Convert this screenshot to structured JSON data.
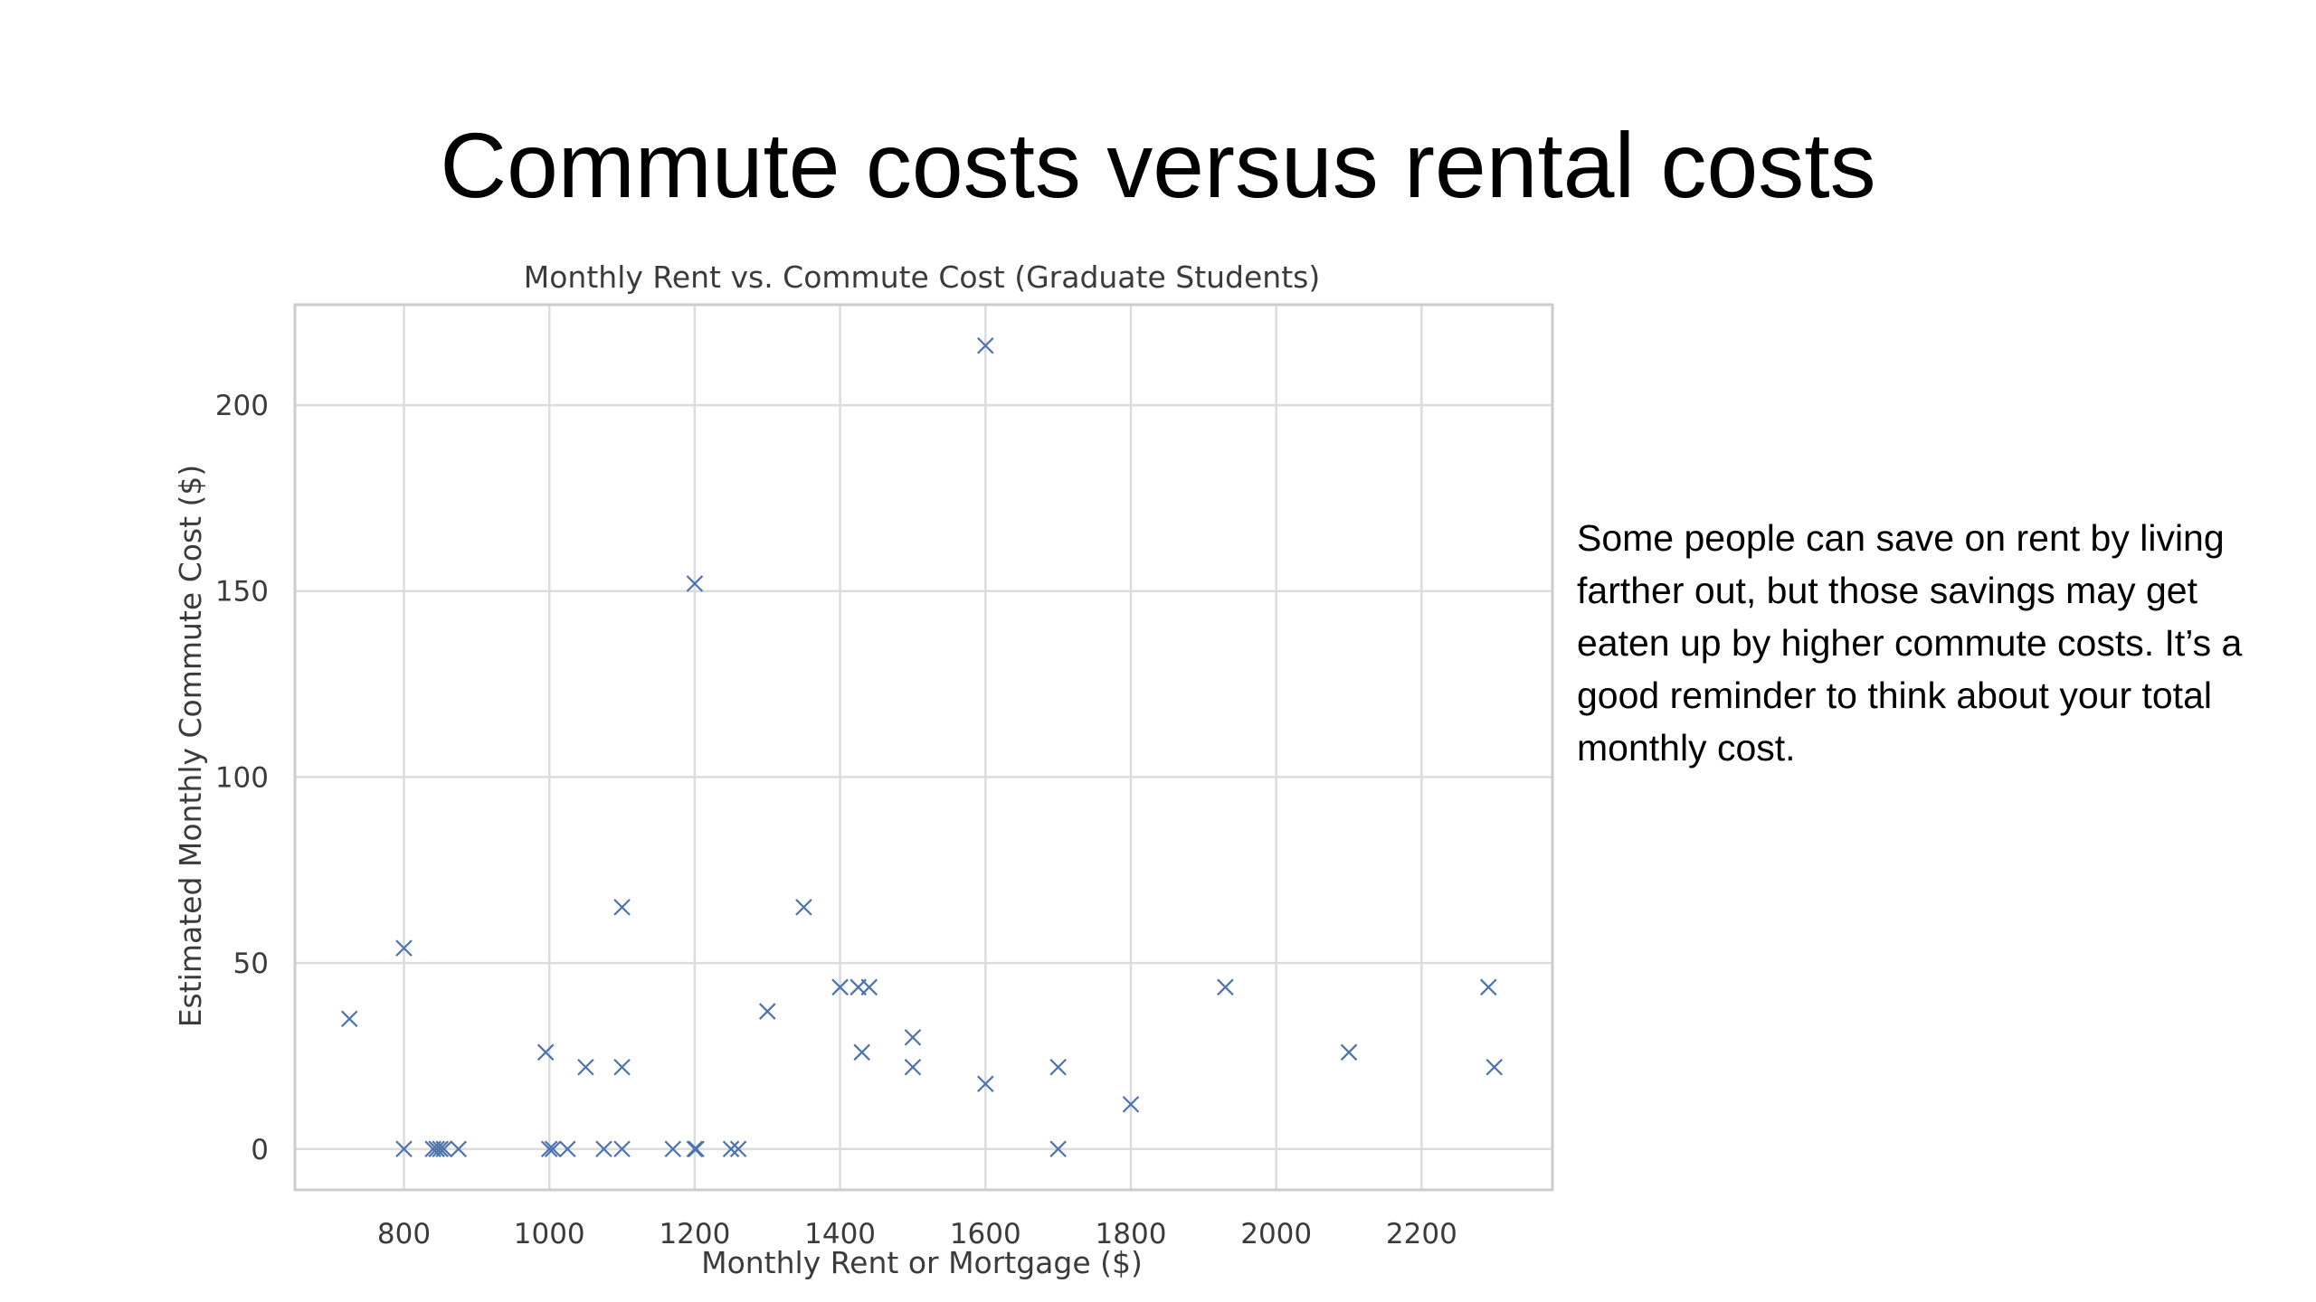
{
  "slide": {
    "title": "Commute costs versus rental costs",
    "note": "Some people can save on rent by living farther out, but those savings may get eaten up by higher commute costs. It’s a good reminder to think about your total monthly cost."
  },
  "chart_data": {
    "type": "scatter",
    "title": "Monthly Rent vs. Commute Cost (Graduate Students)",
    "xlabel": "Monthly Rent or Mortgage ($)",
    "ylabel": "Estimated Monthly Commute Cost ($)",
    "xlim": [
      650,
      2380
    ],
    "ylim": [
      -11,
      227
    ],
    "xticks": [
      800,
      1000,
      1200,
      1400,
      1600,
      1800,
      2000,
      2200
    ],
    "yticks": [
      0,
      50,
      100,
      150,
      200
    ],
    "grid": true,
    "marker": "x",
    "marker_color": "#4c72b0",
    "points": [
      {
        "x": 725,
        "y": 35
      },
      {
        "x": 800,
        "y": 54
      },
      {
        "x": 800,
        "y": 0
      },
      {
        "x": 840,
        "y": 0
      },
      {
        "x": 845,
        "y": 0
      },
      {
        "x": 850,
        "y": 0
      },
      {
        "x": 855,
        "y": 0
      },
      {
        "x": 875,
        "y": 0
      },
      {
        "x": 995,
        "y": 26
      },
      {
        "x": 1000,
        "y": 0
      },
      {
        "x": 1005,
        "y": 0
      },
      {
        "x": 1025,
        "y": 0
      },
      {
        "x": 1050,
        "y": 22
      },
      {
        "x": 1075,
        "y": 0
      },
      {
        "x": 1100,
        "y": 65
      },
      {
        "x": 1100,
        "y": 22
      },
      {
        "x": 1100,
        "y": 0
      },
      {
        "x": 1170,
        "y": 0
      },
      {
        "x": 1200,
        "y": 152
      },
      {
        "x": 1200,
        "y": 0
      },
      {
        "x": 1202,
        "y": 0
      },
      {
        "x": 1250,
        "y": 0
      },
      {
        "x": 1260,
        "y": 0
      },
      {
        "x": 1300,
        "y": 37
      },
      {
        "x": 1350,
        "y": 65
      },
      {
        "x": 1400,
        "y": 43.5
      },
      {
        "x": 1425,
        "y": 43.5
      },
      {
        "x": 1440,
        "y": 43.5
      },
      {
        "x": 1430,
        "y": 26
      },
      {
        "x": 1500,
        "y": 30
      },
      {
        "x": 1500,
        "y": 22
      },
      {
        "x": 1600,
        "y": 216
      },
      {
        "x": 1600,
        "y": 17.5
      },
      {
        "x": 1700,
        "y": 22
      },
      {
        "x": 1700,
        "y": 0
      },
      {
        "x": 1800,
        "y": 12
      },
      {
        "x": 1930,
        "y": 43.5
      },
      {
        "x": 2100,
        "y": 26
      },
      {
        "x": 2292,
        "y": 43.5
      },
      {
        "x": 2300,
        "y": 22
      }
    ]
  }
}
